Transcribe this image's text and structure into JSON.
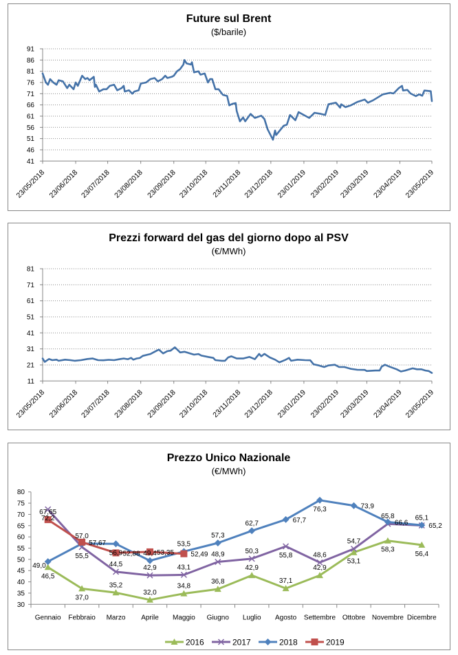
{
  "chart_data": [
    {
      "type": "line",
      "title": "Future sul Brent",
      "subtitle": "($/barile)",
      "xlabel": "",
      "ylabel": "",
      "x_type": "date",
      "x_start": "23/05/2018",
      "x_end": "23/05/2019",
      "x_unit": "days since 23/05/2018",
      "x_range_days": 365,
      "x_ticks": [
        "23/05/2018",
        "23/06/2018",
        "23/07/2018",
        "23/08/2018",
        "23/09/2018",
        "23/10/2018",
        "23/11/2018",
        "23/12/2018",
        "23/01/2019",
        "23/02/2019",
        "23/03/2019",
        "23/04/2019",
        "23/05/2019"
      ],
      "x_tick_days": [
        0,
        31,
        61,
        92,
        123,
        153,
        184,
        214,
        245,
        276,
        304,
        335,
        365
      ],
      "ylim": [
        41,
        91
      ],
      "y_ticks": [
        91,
        86,
        81,
        76,
        71,
        66,
        61,
        56,
        51,
        46,
        41
      ],
      "grid": true,
      "legend": "none",
      "series": [
        {
          "name": "Brent",
          "color": "#4472a8",
          "points": [
            [
              0,
              80
            ],
            [
              3,
              76
            ],
            [
              5,
              75
            ],
            [
              7,
              77.5
            ],
            [
              10,
              76
            ],
            [
              13,
              75
            ],
            [
              15,
              77
            ],
            [
              19,
              76.5
            ],
            [
              23,
              73.5
            ],
            [
              25,
              75
            ],
            [
              29,
              73
            ],
            [
              31,
              76
            ],
            [
              33,
              74.5
            ],
            [
              37,
              79
            ],
            [
              40,
              77.5
            ],
            [
              42,
              78
            ],
            [
              44,
              77
            ],
            [
              48,
              78.5
            ],
            [
              49,
              74
            ],
            [
              50,
              75
            ],
            [
              53,
              72
            ],
            [
              57,
              73
            ],
            [
              60,
              73
            ],
            [
              63,
              74.5
            ],
            [
              67,
              75
            ],
            [
              70,
              72.5
            ],
            [
              74,
              73.5
            ],
            [
              76,
              74.5
            ],
            [
              77,
              72
            ],
            [
              81,
              72.5
            ],
            [
              84,
              71
            ],
            [
              86,
              72
            ],
            [
              90,
              72.5
            ],
            [
              92,
              75.5
            ],
            [
              97,
              76
            ],
            [
              101,
              77.5
            ],
            [
              105,
              78
            ],
            [
              108,
              76.5
            ],
            [
              112,
              77.5
            ],
            [
              115,
              79
            ],
            [
              117,
              78
            ],
            [
              121,
              78.5
            ],
            [
              123,
              79
            ],
            [
              126,
              81
            ],
            [
              129,
              82
            ],
            [
              132,
              84
            ],
            [
              133,
              86
            ],
            [
              135,
              84.5
            ],
            [
              139,
              84
            ],
            [
              140,
              85
            ],
            [
              142,
              80.5
            ],
            [
              146,
              81
            ],
            [
              148,
              79.5
            ],
            [
              152,
              80
            ],
            [
              155,
              76
            ],
            [
              157,
              77.5
            ],
            [
              159,
              77.5
            ],
            [
              162,
              73
            ],
            [
              165,
              73
            ],
            [
              169,
              70.5
            ],
            [
              173,
              70
            ],
            [
              175,
              65.8
            ],
            [
              178,
              66.5
            ],
            [
              181,
              66.8
            ],
            [
              182,
              63.3
            ],
            [
              185,
              58.7
            ],
            [
              188,
              60.4
            ],
            [
              190,
              58.7
            ],
            [
              195,
              62
            ],
            [
              199,
              60.2
            ],
            [
              205,
              61.2
            ],
            [
              208,
              59.7
            ],
            [
              211,
              55.1
            ],
            [
              216,
              50.5
            ],
            [
              218,
              54.6
            ],
            [
              219,
              52.6
            ],
            [
              226,
              56.7
            ],
            [
              229,
              57.2
            ],
            [
              232,
              61.5
            ],
            [
              237,
              59.2
            ],
            [
              240,
              62.8
            ],
            [
              246,
              61.2
            ],
            [
              250,
              60.2
            ],
            [
              255,
              62.5
            ],
            [
              261,
              62
            ],
            [
              265,
              61.5
            ],
            [
              268,
              66.3
            ],
            [
              275,
              67
            ],
            [
              279,
              64.8
            ],
            [
              280,
              66.3
            ],
            [
              284,
              65
            ],
            [
              289,
              65.8
            ],
            [
              295,
              67.3
            ],
            [
              302,
              68.4
            ],
            [
              305,
              67
            ],
            [
              310,
              68.1
            ],
            [
              319,
              70.7
            ],
            [
              326,
              71.4
            ],
            [
              329,
              71.1
            ],
            [
              334,
              73.5
            ],
            [
              337,
              74.5
            ],
            [
              338,
              72.4
            ],
            [
              342,
              72.7
            ],
            [
              345,
              71.1
            ],
            [
              350,
              69.9
            ],
            [
              353,
              70.7
            ],
            [
              356,
              70.1
            ],
            [
              358,
              72.4
            ],
            [
              364,
              72.1
            ],
            [
              365,
              67.7
            ]
          ]
        }
      ]
    },
    {
      "type": "line",
      "title": "Prezzi forward del gas del giorno dopo al PSV",
      "subtitle": "(€/MWh)",
      "xlabel": "",
      "ylabel": "",
      "x_type": "date",
      "x_start": "23/05/2018",
      "x_end": "23/05/2019",
      "x_unit": "days since 23/05/2018",
      "x_range_days": 365,
      "x_ticks": [
        "23/05/2018",
        "23/06/2018",
        "23/07/2018",
        "23/08/2018",
        "23/09/2018",
        "23/10/2018",
        "23/11/2018",
        "23/12/2018",
        "23/01/2019",
        "23/02/2019",
        "23/03/2019",
        "23/04/2019",
        "23/05/2019"
      ],
      "x_tick_days": [
        0,
        31,
        61,
        92,
        123,
        153,
        184,
        214,
        245,
        276,
        304,
        335,
        365
      ],
      "ylim": [
        11,
        81
      ],
      "y_ticks": [
        81,
        71,
        61,
        51,
        41,
        31,
        21,
        11
      ],
      "grid": true,
      "legend": "none",
      "series": [
        {
          "name": "PSV day-ahead",
          "color": "#4472a8",
          "points": [
            [
              0,
              25
            ],
            [
              2,
              22.9
            ],
            [
              6,
              24.7
            ],
            [
              9,
              24
            ],
            [
              13,
              24.3
            ],
            [
              15,
              23.6
            ],
            [
              21,
              24.3
            ],
            [
              26,
              24
            ],
            [
              30,
              23.6
            ],
            [
              36,
              24
            ],
            [
              42,
              24.7
            ],
            [
              47,
              25
            ],
            [
              52,
              24
            ],
            [
              57,
              23.9
            ],
            [
              62,
              24.2
            ],
            [
              67,
              24
            ],
            [
              73,
              24.7
            ],
            [
              76,
              25
            ],
            [
              80,
              24.6
            ],
            [
              83,
              25.4
            ],
            [
              85,
              24.3
            ],
            [
              88,
              25
            ],
            [
              91,
              25.3
            ],
            [
              94,
              26.7
            ],
            [
              101,
              27.8
            ],
            [
              105,
              29.2
            ],
            [
              109,
              30.6
            ],
            [
              113,
              28.2
            ],
            [
              117,
              29.6
            ],
            [
              120,
              29.9
            ],
            [
              124,
              32
            ],
            [
              129,
              28.8
            ],
            [
              133,
              29.2
            ],
            [
              142,
              27.4
            ],
            [
              146,
              27.8
            ],
            [
              149,
              26.8
            ],
            [
              155,
              26
            ],
            [
              160,
              25.4
            ],
            [
              162,
              24
            ],
            [
              168,
              23.6
            ],
            [
              171,
              23.6
            ],
            [
              174,
              25.7
            ],
            [
              177,
              26.4
            ],
            [
              182,
              25
            ],
            [
              188,
              25
            ],
            [
              194,
              26
            ],
            [
              199,
              24.6
            ],
            [
              203,
              27.9
            ],
            [
              205,
              26.4
            ],
            [
              208,
              27.9
            ],
            [
              213,
              25.7
            ],
            [
              218,
              24.3
            ],
            [
              222,
              22.6
            ],
            [
              228,
              24.3
            ],
            [
              231,
              25.4
            ],
            [
              233,
              23.6
            ],
            [
              239,
              24.3
            ],
            [
              246,
              24
            ],
            [
              251,
              23.9
            ],
            [
              254,
              21.4
            ],
            [
              259,
              20.7
            ],
            [
              264,
              19.7
            ],
            [
              268,
              20.7
            ],
            [
              274,
              21.1
            ],
            [
              278,
              19.7
            ],
            [
              283,
              19.7
            ],
            [
              289,
              18.6
            ],
            [
              295,
              18
            ],
            [
              302,
              17.9
            ],
            [
              304,
              17.2
            ],
            [
              312,
              17.5
            ],
            [
              316,
              17.5
            ],
            [
              318,
              20
            ],
            [
              321,
              21.1
            ],
            [
              325,
              20
            ],
            [
              332,
              18.3
            ],
            [
              336,
              16.9
            ],
            [
              340,
              17.5
            ],
            [
              347,
              18.9
            ],
            [
              351,
              18.3
            ],
            [
              355,
              18.3
            ],
            [
              359,
              17.5
            ],
            [
              362,
              17.2
            ],
            [
              365,
              16
            ]
          ]
        }
      ]
    },
    {
      "type": "line",
      "title": "Prezzo Unico Nazionale",
      "subtitle": "(€/MWh)",
      "xlabel": "",
      "ylabel": "",
      "categories": [
        "Gennaio",
        "Febbraio",
        "Marzo",
        "Aprile",
        "Maggio",
        "Giugno",
        "Luglio",
        "Agosto",
        "Settembre",
        "Ottobre",
        "Novembre",
        "Dicembre"
      ],
      "ylim": [
        30,
        80
      ],
      "y_ticks": [
        80,
        75,
        70,
        65,
        60,
        55,
        50,
        45,
        40,
        35,
        30
      ],
      "grid": false,
      "legend": "bottom",
      "series": [
        {
          "name": "2016",
          "color": "#9bbb59",
          "marker": "triangle",
          "values": [
            46.5,
            37.0,
            35.2,
            32.0,
            34.8,
            36.8,
            42.9,
            37.1,
            42.9,
            53.1,
            58.3,
            56.4
          ],
          "labels": [
            "46,5",
            "37,0",
            "35,2",
            "32,0",
            "34,8",
            "36,8",
            "42,9",
            "37,1",
            "42,9",
            "53,1",
            "58,3",
            "56,4"
          ]
        },
        {
          "name": "2017",
          "color": "#8064a2",
          "marker": "x",
          "values": [
            72.2,
            55.5,
            44.5,
            42.9,
            43.1,
            48.9,
            50.3,
            55.8,
            48.6,
            54.7,
            65.8,
            65.1
          ],
          "labels": [
            "72,2",
            "55,5",
            "44,5",
            "42,9",
            "43,1",
            "48,9",
            "50,3",
            "55,8",
            "48,6",
            "54,7",
            "65,8",
            "65,1"
          ]
        },
        {
          "name": "2018",
          "color": "#4f81bd",
          "marker": "diamond",
          "values": [
            49.0,
            57.0,
            56.9,
            49.4,
            53.5,
            57.3,
            62.7,
            67.7,
            76.3,
            73.9,
            66.6,
            65.2
          ],
          "labels": [
            "49,0",
            "57,0",
            "56,9",
            "49,4",
            "53,5",
            "57,3",
            "62,7",
            "67,7",
            "76,3",
            "73,9",
            "66,6",
            "65,2"
          ]
        },
        {
          "name": "2019",
          "color": "#c0504d",
          "marker": "square",
          "values": [
            67.65,
            57.67,
            52.88,
            53.35,
            52.49,
            null,
            null,
            null,
            null,
            null,
            null,
            null
          ],
          "labels": [
            "67,65",
            "57,67",
            "52,88",
            "53,35",
            "52,49"
          ]
        }
      ]
    }
  ]
}
